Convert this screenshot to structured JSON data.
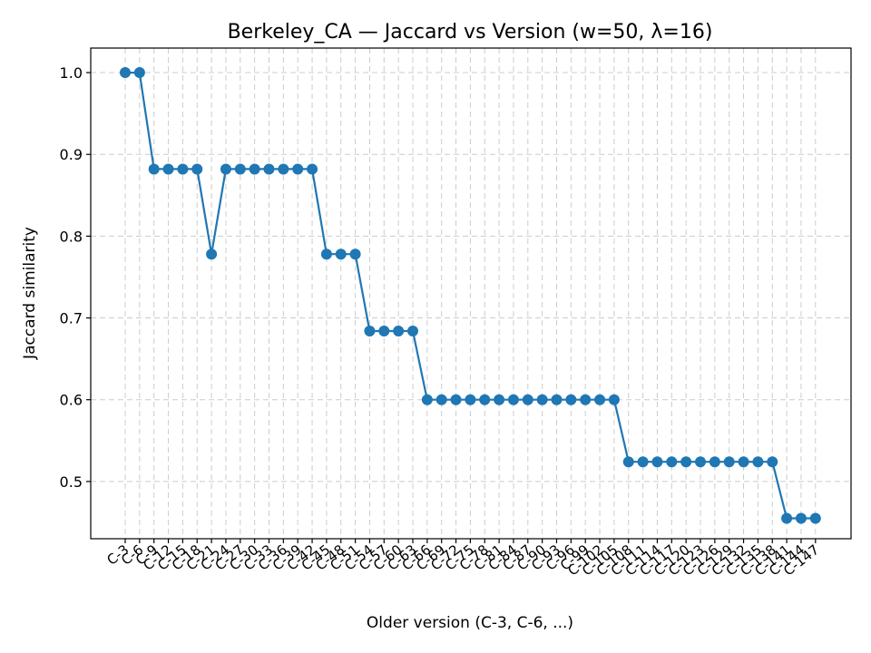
{
  "chart_data": {
    "type": "line",
    "title": "Berkeley_CA — Jaccard vs Version (w=50, λ=16)",
    "xlabel": "Older version (C-3, C-6, ...)",
    "ylabel": "Jaccard similarity",
    "grid": true,
    "ylim": [
      0.43,
      1.03
    ],
    "yticks": [
      0.5,
      0.6,
      0.7,
      0.8,
      0.9,
      1.0
    ],
    "ytick_labels": [
      "0.5",
      "0.6",
      "0.7",
      "0.8",
      "0.9",
      "1.0"
    ],
    "color": "#1f77b4",
    "marker": "circle",
    "categories": [
      "C-3",
      "C-6",
      "C-9",
      "C-12",
      "C-15",
      "C-18",
      "C-21",
      "C-24",
      "C-27",
      "C-30",
      "C-33",
      "C-36",
      "C-39",
      "C-42",
      "C-45",
      "C-48",
      "C-51",
      "C-54",
      "C-57",
      "C-60",
      "C-63",
      "C-66",
      "C-69",
      "C-72",
      "C-75",
      "C-78",
      "C-81",
      "C-84",
      "C-87",
      "C-90",
      "C-93",
      "C-96",
      "C-99",
      "C-102",
      "C-105",
      "C-108",
      "C-111",
      "C-114",
      "C-117",
      "C-120",
      "C-123",
      "C-126",
      "C-129",
      "C-132",
      "C-135",
      "C-138",
      "C-141",
      "C-144",
      "C-147"
    ],
    "series": [
      {
        "values": [
          1.0,
          1.0,
          0.882,
          0.882,
          0.882,
          0.882,
          0.778,
          0.882,
          0.882,
          0.882,
          0.882,
          0.882,
          0.882,
          0.882,
          0.778,
          0.778,
          0.778,
          0.684,
          0.684,
          0.684,
          0.684,
          0.6,
          0.6,
          0.6,
          0.6,
          0.6,
          0.6,
          0.6,
          0.6,
          0.6,
          0.6,
          0.6,
          0.6,
          0.6,
          0.6,
          0.524,
          0.524,
          0.524,
          0.524,
          0.524,
          0.524,
          0.524,
          0.524,
          0.524,
          0.524,
          0.524,
          0.455,
          0.455,
          0.455
        ]
      }
    ]
  }
}
